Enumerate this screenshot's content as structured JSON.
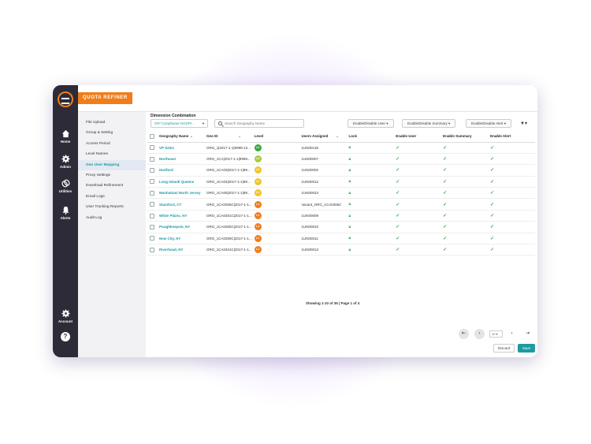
{
  "app": {
    "brand": "QUOTA REFINER"
  },
  "rail": {
    "items": [
      {
        "label": "Home",
        "icon": "home-icon"
      },
      {
        "label": "Admin",
        "icon": "gear-icon"
      },
      {
        "label": "Utilities",
        "icon": "link-icon"
      },
      {
        "label": "Alerts",
        "icon": "bell-icon"
      }
    ],
    "account": {
      "label": "Account",
      "icon": "gear-icon"
    },
    "help_label": "?"
  },
  "menu": {
    "items": [
      "File Upload",
      "Group & Setting",
      "Access Period",
      "Level Names",
      "Geo User Mapping",
      "Proxy Settings",
      "Download Refinement",
      "Email Logs",
      "User Tracking Reports",
      "Audit Log"
    ],
    "active": "Geo User Mapping"
  },
  "toolbar": {
    "dimension_title": "Dimension Combination",
    "dimension_value": "GP/ Cylophane/ HOSPI...",
    "search_placeholder": "Search Geography Name",
    "enable_user": "Enable/Disable User",
    "enable_summary": "Enable/Disable Summary",
    "enable_alert": "Enable/Disable Alert"
  },
  "table": {
    "columns": [
      "Geography Name",
      "Geo ID",
      "Level",
      "Users Assigned",
      "Lock",
      "Enable User",
      "Enable Summary",
      "Enable Alert"
    ],
    "rows": [
      {
        "name": "VP Sales",
        "geo_id": "ORG_1|2017-1-1|9999-12...",
        "level": "L4",
        "user": "1UN00136"
      },
      {
        "name": "Northeast",
        "geo_id": "ORG_1CA|2017-1-1|9999...",
        "level": "L3",
        "user": "1UN00007"
      },
      {
        "name": "Hartford",
        "geo_id": "ORG_1CA03|2017-1-1|99...",
        "level": "L2",
        "user": "1UN00002"
      },
      {
        "name": "Long Island/ Queens",
        "geo_id": "ORG_1CA04|2017-1-1|99...",
        "level": "L2",
        "user": "1UN00012"
      },
      {
        "name": "Manhattan/ North Jersey",
        "geo_id": "ORG_1CA05|2017-1-1|99...",
        "level": "L2",
        "user": "1UN00023"
      },
      {
        "name": "Stamford, CT",
        "geo_id": "ORG_1CA0306C|2017-1-1...",
        "level": "L1",
        "user": "Vacant_ORG_1CA0306C"
      },
      {
        "name": "White Plains, NY",
        "geo_id": "ORG_1CA0301C|2017-1-1...",
        "level": "L1",
        "user": "1UN00009"
      },
      {
        "name": "Poughkeepsie, NY",
        "geo_id": "ORG_1CA0305C|2017-1-1...",
        "level": "L1",
        "user": "1UN00010"
      },
      {
        "name": "New City, NY",
        "geo_id": "ORG_1CA0309C|2017-1-1...",
        "level": "L1",
        "user": "1UN00011"
      },
      {
        "name": "Riverhead, NY",
        "geo_id": "ORG_1CA0401C|2017-1-1...",
        "level": "L1",
        "user": "1UN00013"
      }
    ],
    "level_colors": {
      "L4": "#3aa845",
      "L3": "#a6cf39",
      "L2": "#f3c42a",
      "L1": "#f07d1a"
    }
  },
  "pagination": {
    "summary": "Showing 1-10 of 35 | Page 1 of 4",
    "per_page": "10"
  },
  "actions": {
    "discard": "Discard",
    "save": "Save"
  }
}
